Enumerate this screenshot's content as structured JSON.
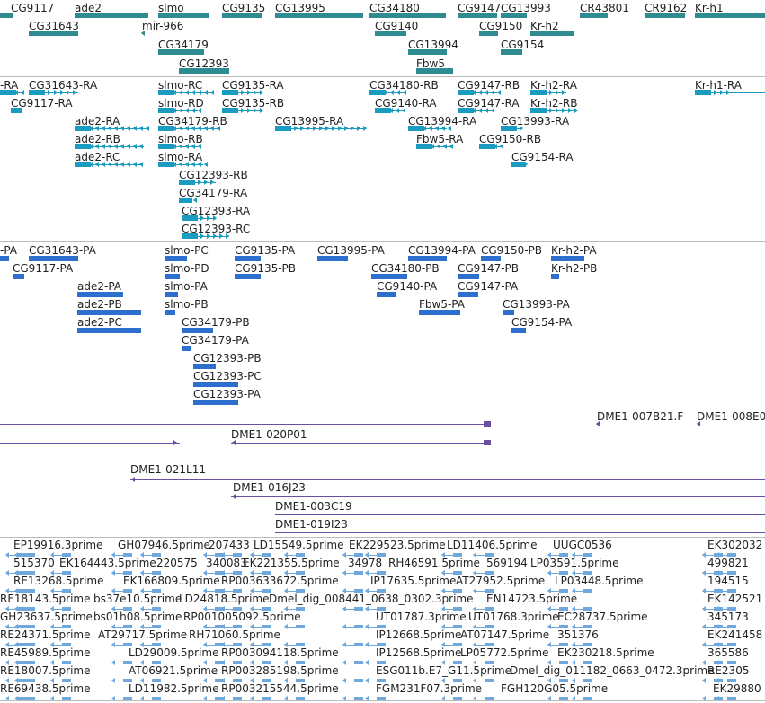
{
  "tracks": {
    "genes": {
      "color": "#2e8b8f",
      "labels": [
        "CG9117",
        "ade2",
        "slmo",
        "CG9135",
        "CG13995",
        "CG34180",
        "CG9147",
        "CG13993",
        "CR43801",
        "CR9162",
        "Kr-h1",
        "CG31643",
        "mir-966",
        "CG9140",
        "CG9150",
        "Kr-h2",
        "CG34179",
        "CG13994",
        "CG9154",
        "CG12393",
        "Fbw5"
      ]
    },
    "transcripts": {
      "color": "#1a9bc0",
      "labels": [
        "-RA",
        "CG31643-RA",
        "slmo-RC",
        "CG9135-RA",
        "CG34180-RB",
        "CG9147-RB",
        "Kr-h2-RA",
        "Kr-h1-RA",
        "CG9117-RA",
        "slmo-RD",
        "CG9135-RB",
        "CG9140-RA",
        "CG9147-RA",
        "Kr-h2-RB",
        "ade2-RA",
        "CG34179-RB",
        "CG13995-RA",
        "CG13994-RA",
        "CG13993-RA",
        "ade2-RB",
        "slmo-RB",
        "Fbw5-RA",
        "CG9150-RB",
        "ade2-RC",
        "slmo-RA",
        "CG9154-RA",
        "CG12393-RB",
        "CG34179-RA",
        "CG12393-RA",
        "CG12393-RC"
      ]
    },
    "proteins": {
      "color": "#2d6fce",
      "labels": [
        "-PA",
        "CG31643-PA",
        "slmo-PC",
        "CG9135-PA",
        "CG13995-PA",
        "CG13994-PA",
        "CG9150-PB",
        "Kr-h2-PA",
        "CG9117-PA",
        "slmo-PD",
        "CG9135-PB",
        "CG34180-PB",
        "CG9147-PB",
        "Kr-h2-PB",
        "ade2-PA",
        "slmo-PA",
        "CG9140-PA",
        "CG9147-PA",
        "ade2-PB",
        "slmo-PB",
        "Fbw5-PA",
        "CG13993-PA",
        "ade2-PC",
        "CG34179-PB",
        "CG9154-PA",
        "CG34179-PA",
        "CG12393-PB",
        "CG12393-PC",
        "CG12393-PA"
      ]
    },
    "clones": {
      "color": "#6a4fa0",
      "labels": [
        "DME1-007B21.F",
        "DME1-008E0",
        "DME1-020P01",
        "DME1-021L11",
        "DME1-016J23",
        "DME1-003C19",
        "DME1-019I23"
      ]
    },
    "ests": {
      "color": "#6fa8dc",
      "labels": [
        "EP19916.3prime",
        "GH07946.5prime",
        "207433",
        "LD15549.5prime",
        "EK229523.5prime",
        "LD11406.5prime",
        "UUGC0536",
        "EK302032",
        "515370",
        "EK164443.5prime",
        "220575",
        "340083",
        "EK221355.5prime",
        "34978",
        "RH46591.5prime",
        "569194",
        "LP03591.5prime",
        "499821",
        "RE13268.5prime",
        "EK166809.5prime",
        "RP003633672.5prime",
        "IP17635.5prime",
        "AT27952.5prime",
        "LP03448.5prime",
        "194515",
        "RE18143.5prime",
        "bs37e10.5prime",
        "LD24818.5prime",
        "Dmel_dig_008441_0638_0302.3prime",
        "EN14723.5prime",
        "EK142521",
        "GH23637.5prime",
        "bs01h08.5prime",
        "RP001005092.5prime",
        "UT01787.3prime",
        "UT01768.3prime",
        "EC28737.5prime",
        "345173",
        "RE24371.5prime",
        "AT29717.5prime",
        "RH71060.5prime",
        "IP12668.5prime",
        "AT07147.5prime",
        "351376",
        "EK241458",
        "RE45989.5prime",
        "LD29009.5prime",
        "RP003094118.5prime",
        "IP12568.5prime",
        "LP05772.5prime",
        "EK230218.5prime",
        "365586",
        "RE18007.5prime",
        "AT06921.5prime",
        "RP003285198.5prime",
        "ESG011b.E7_G11.5prime",
        "Dmel_dig_011182_0663_0472.3prime",
        "RE2305",
        "RE69438.5prime",
        "LD11982.5prime",
        "RP003215544.5prime",
        "FGM231F07.3prime",
        "FGH120G05.5prime",
        "EK29880"
      ]
    }
  }
}
